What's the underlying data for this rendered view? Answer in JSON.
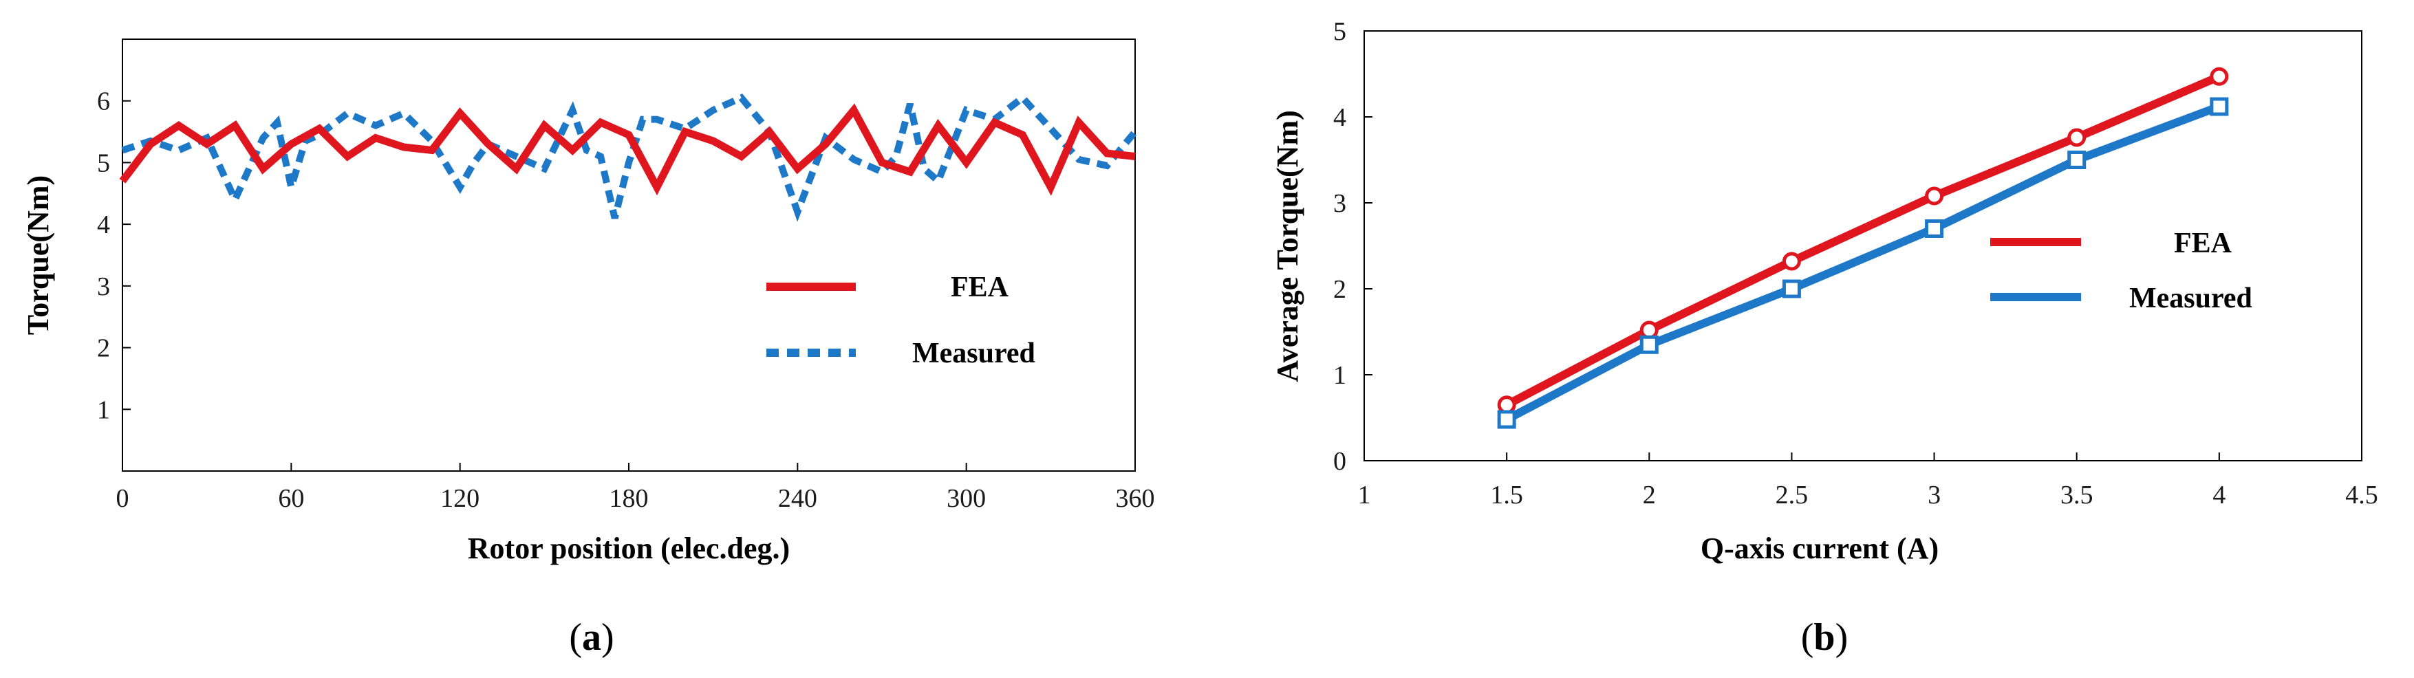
{
  "colors": {
    "fea": "#e0161f",
    "measured": "#1e78c8",
    "axis": "#000000"
  },
  "chart_data": [
    {
      "type": "line",
      "xlabel": "Rotor position (elec.deg.)",
      "ylabel": "Torque(Nm)",
      "xlim": [
        0,
        360
      ],
      "ylim": [
        0,
        7
      ],
      "xticks": [
        "0",
        "60",
        "120",
        "180",
        "240",
        "300",
        "360"
      ],
      "yticks": [
        "1",
        "2",
        "3",
        "4",
        "5",
        "6"
      ],
      "grid": false,
      "legend_position": "right",
      "caption": {
        "open": "(",
        "letter": "a",
        "close": ")"
      },
      "series": [
        {
          "name": "FEA",
          "style": "solid",
          "x": [
            0,
            10,
            20,
            30,
            40,
            50,
            60,
            70,
            80,
            90,
            100,
            110,
            120,
            130,
            140,
            150,
            160,
            170,
            180,
            190,
            200,
            210,
            220,
            230,
            240,
            250,
            260,
            270,
            280,
            290,
            300,
            310,
            320,
            330,
            340,
            350,
            360
          ],
          "y": [
            4.7,
            5.3,
            5.6,
            5.3,
            5.6,
            4.9,
            5.3,
            5.55,
            5.1,
            5.4,
            5.25,
            5.2,
            5.8,
            5.3,
            4.9,
            5.6,
            5.2,
            5.65,
            5.45,
            4.6,
            5.5,
            5.35,
            5.1,
            5.5,
            4.9,
            5.3,
            5.85,
            5.0,
            4.85,
            5.6,
            5.0,
            5.65,
            5.45,
            4.6,
            5.65,
            5.15,
            5.1
          ]
        },
        {
          "name": "Measured",
          "style": "dashed",
          "x": [
            0,
            10,
            20,
            30,
            40,
            45,
            50,
            55,
            60,
            65,
            70,
            80,
            90,
            100,
            110,
            120,
            125,
            130,
            140,
            150,
            160,
            165,
            170,
            175,
            180,
            185,
            190,
            200,
            210,
            220,
            230,
            240,
            250,
            260,
            270,
            275,
            280,
            285,
            290,
            300,
            310,
            320,
            330,
            340,
            350,
            360
          ],
          "y": [
            5.2,
            5.35,
            5.2,
            5.4,
            4.4,
            4.9,
            5.4,
            5.65,
            4.6,
            5.35,
            5.45,
            5.8,
            5.6,
            5.8,
            5.35,
            4.6,
            5.0,
            5.3,
            5.1,
            4.9,
            5.85,
            5.2,
            5.1,
            4.1,
            5.0,
            5.7,
            5.7,
            5.55,
            5.85,
            6.05,
            5.5,
            4.2,
            5.4,
            5.05,
            4.85,
            5.1,
            5.95,
            4.9,
            4.7,
            5.85,
            5.7,
            6.05,
            5.55,
            5.05,
            4.95,
            5.5
          ]
        }
      ]
    },
    {
      "type": "line",
      "xlabel": "Q-axis current (A)",
      "ylabel": "Average Torque(Nm)",
      "xlim": [
        1,
        4.5
      ],
      "ylim": [
        0,
        5
      ],
      "xticks": [
        "1",
        "1.5",
        "2",
        "2.5",
        "3",
        "3.5",
        "4",
        "4.5"
      ],
      "yticks": [
        "0",
        "1",
        "2",
        "3",
        "4",
        "5"
      ],
      "grid": false,
      "legend_position": "right",
      "caption": {
        "open": "(",
        "letter": "b",
        "close": ")"
      },
      "series": [
        {
          "name": "FEA",
          "marker": "circle",
          "x": [
            1.5,
            2,
            2.5,
            3,
            3.5,
            4
          ],
          "y": [
            0.65,
            1.52,
            2.32,
            3.08,
            3.76,
            4.47
          ]
        },
        {
          "name": "Measured",
          "marker": "square",
          "x": [
            1.5,
            2,
            2.5,
            3,
            3.5,
            4
          ],
          "y": [
            0.48,
            1.35,
            2.0,
            2.7,
            3.5,
            4.12
          ]
        }
      ]
    }
  ]
}
